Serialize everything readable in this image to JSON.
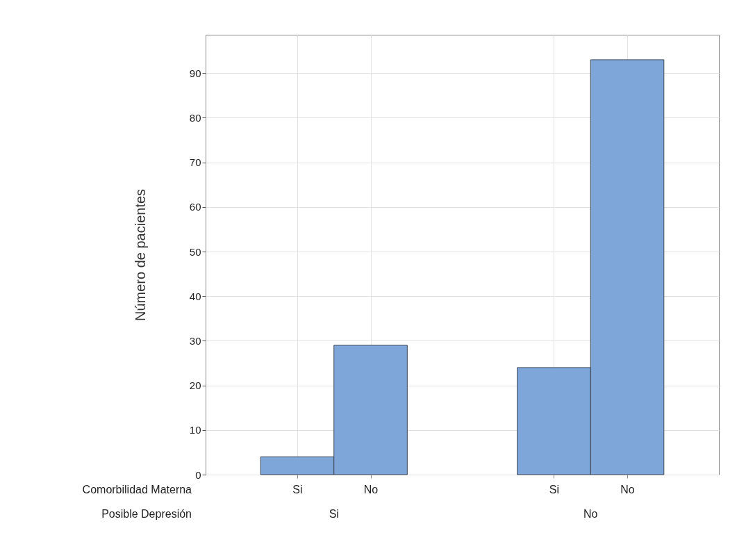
{
  "chart_data": {
    "type": "bar",
    "ylabel": "Número de pacientes",
    "categories": [
      "Si",
      "No",
      "Si",
      "No"
    ],
    "values": [
      4,
      29,
      24,
      93
    ],
    "color": "#7ea6d8",
    "ylim": [
      0,
      98.6
    ],
    "yticks": [
      0,
      10,
      20,
      30,
      40,
      50,
      60,
      70,
      80,
      90
    ],
    "grid": true,
    "annotations": [
      "Comorbilidad Materna",
      "Posible Depresión",
      "Si",
      "No"
    ]
  }
}
